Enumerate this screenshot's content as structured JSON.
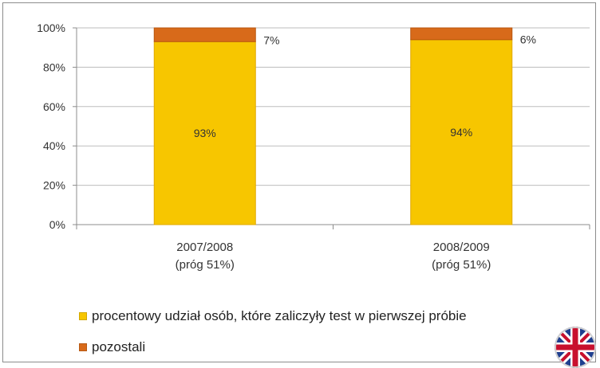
{
  "chart_data": {
    "type": "bar",
    "stacked": true,
    "categories": [
      "2007/2008\n(próg 51%)",
      "2008/2009\n(próg 51%)"
    ],
    "series": [
      {
        "name": "procentowy udział osób, które zaliczyły test w pierwszej próbie",
        "values": [
          93,
          94
        ],
        "labels": [
          "93%",
          "94%"
        ],
        "color": "#f7c600"
      },
      {
        "name": "pozostali",
        "values": [
          7,
          6
        ],
        "labels": [
          "7%",
          "6%"
        ],
        "color": "#d86a1a"
      }
    ],
    "yticks": [
      "0%",
      "20%",
      "40%",
      "60%",
      "80%",
      "100%"
    ],
    "ylim": [
      0,
      100
    ],
    "grid": true,
    "legend_position": "bottom-left"
  },
  "language_flag": "uk-flag-icon"
}
